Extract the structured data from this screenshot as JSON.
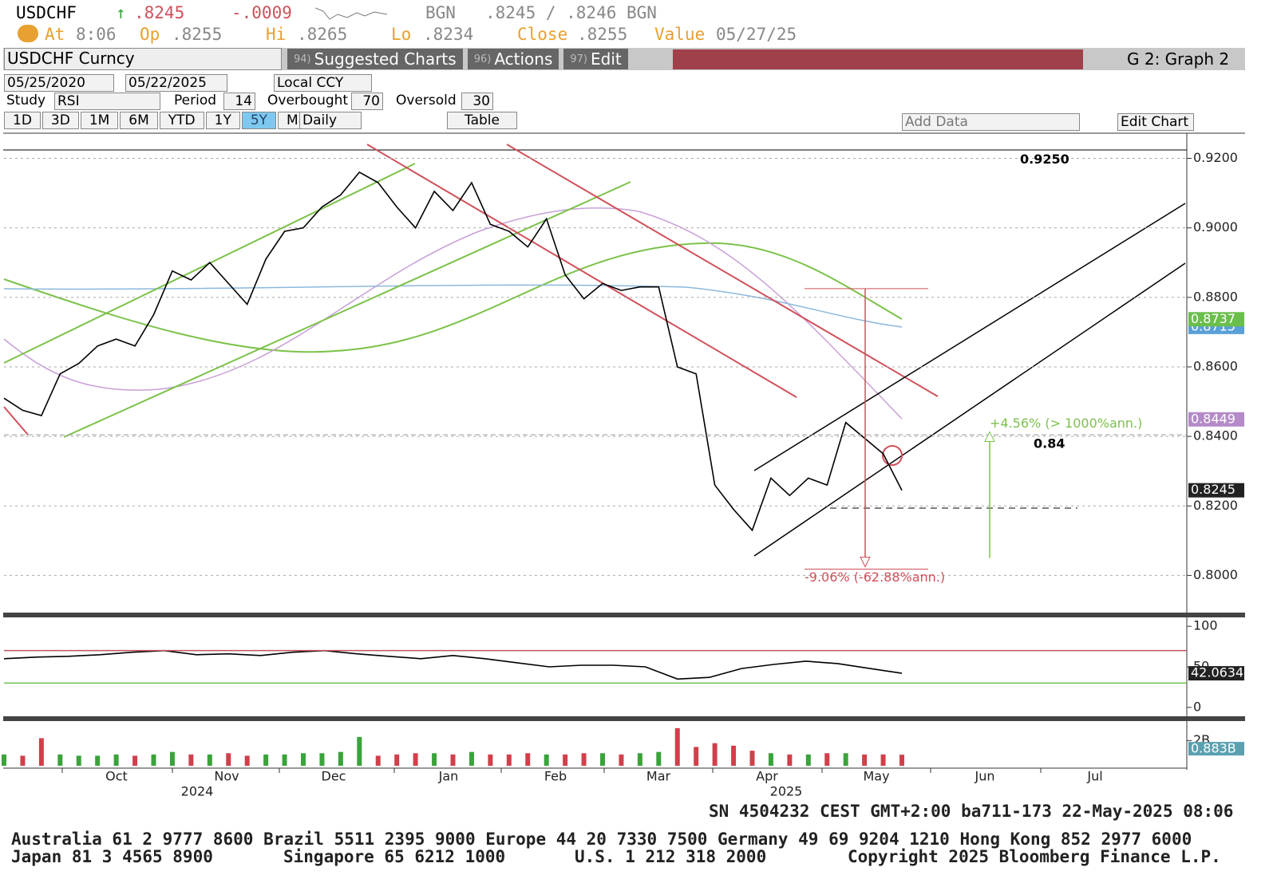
{
  "header": {
    "ticker": "USDCHF",
    "last": ".8245",
    "change": "-.0009",
    "source1": "BGN",
    "bid_ask": ".8245 / .8246",
    "source2": "BGN",
    "at_label": "At",
    "at": "8:06",
    "op_label": "Op",
    "op": ".8255",
    "hi_label": "Hi",
    "hi": ".8265",
    "lo_label": "Lo",
    "lo": ".8234",
    "close_label": "Close",
    "close": ".8255",
    "value_label": "Value",
    "value": "05/27/25"
  },
  "toolbar": {
    "security": "USDCHF Curncy",
    "menu": [
      {
        "num": "94)",
        "label": "Suggested Charts"
      },
      {
        "num": "96)",
        "label": "Actions"
      },
      {
        "num": "97)",
        "label": "Edit"
      }
    ],
    "graph": "G 2: Graph 2"
  },
  "controls": {
    "start": "05/25/2020",
    "end": "05/22/2025",
    "currency": "Local CCY",
    "study_label": "Study",
    "study": "RSI",
    "period_label": "Period",
    "period": 14,
    "overbought_label": "Overbought",
    "overbought": 70,
    "oversold_label": "Oversold",
    "oversold": 30,
    "ranges": [
      "1D",
      "3D",
      "1M",
      "6M",
      "YTD",
      "1Y",
      "5Y",
      "Max"
    ],
    "frequency": "Daily",
    "table": "Table",
    "add_data": "Add Data",
    "edit_chart": "Edit Chart"
  },
  "chart_data": [
    {
      "type": "line",
      "name": "price",
      "color": "#000000",
      "values": [
        0.851,
        0.8475,
        0.846,
        0.858,
        0.861,
        0.866,
        0.868,
        0.866,
        0.875,
        0.8876,
        0.885,
        0.89,
        0.884,
        0.878,
        0.891,
        0.899,
        0.9,
        0.906,
        0.9095,
        0.916,
        0.913,
        0.906,
        0.9,
        0.9105,
        0.905,
        0.913,
        0.901,
        0.899,
        0.8945,
        0.9026,
        0.8865,
        0.8796,
        0.884,
        0.882,
        0.883,
        0.883,
        0.86,
        0.858,
        0.826,
        0.819,
        0.813,
        0.828,
        0.823,
        0.828,
        0.826,
        0.844,
        0.8395,
        0.835,
        0.8245
      ],
      "ylim": [
        0.79,
        0.927
      ],
      "yticks": [
        {
          "value": 0.8,
          "label": "0.8000"
        },
        {
          "value": 0.82,
          "label": "0.8200"
        },
        {
          "value": 0.84,
          "label": "0.8400"
        },
        {
          "value": 0.86,
          "label": "0.8600"
        },
        {
          "value": 0.88,
          "label": "0.8800"
        },
        {
          "value": 0.9,
          "label": "0.9000"
        },
        {
          "value": 0.92,
          "label": "0.9200"
        }
      ],
      "grid": true,
      "last_labels": [
        {
          "value": 0.8715,
          "label": "0.8715",
          "color": "#5aa0d8"
        },
        {
          "value": 0.8737,
          "label": "0.8737",
          "color": "#6abf4b"
        },
        {
          "value": 0.8449,
          "label": "0.8449",
          "color": "#b48ac8"
        },
        {
          "value": 0.8245,
          "label": "0.8245",
          "color": "#222222"
        }
      ],
      "levels": [
        {
          "value": 0.925,
          "label": "0.9250"
        },
        {
          "value": 0.84,
          "label": "0.84"
        }
      ],
      "measures": [
        {
          "from": 0.8825,
          "to": 0.8025,
          "label": "-9.06% (-62.88%ann.)",
          "color": "#d0505a"
        },
        {
          "from": 0.805,
          "to": 0.8413,
          "label": "+4.56% (> 1000%ann.)",
          "color": "#7cc24a"
        }
      ],
      "months": [
        "Oct",
        "Nov",
        "Dec",
        "Jan",
        "Feb",
        "Mar",
        "Apr",
        "May",
        "Jun",
        "Jul"
      ],
      "years": [
        "2024",
        "2025"
      ]
    },
    {
      "type": "line",
      "name": "RSI",
      "color": "#000000",
      "values": [
        60,
        62,
        63,
        65,
        68,
        70,
        65,
        66,
        64,
        68,
        70,
        66,
        63,
        60,
        64,
        60,
        55,
        50,
        52,
        52,
        50,
        35,
        37,
        48,
        53,
        57,
        54,
        48,
        42.0634
      ],
      "ylim": [
        -8,
        110
      ],
      "yticks": [
        0,
        50,
        100
      ],
      "last_label": "42.0634"
    },
    {
      "type": "bar",
      "name": "volume",
      "values": [
        0.9,
        0.8,
        2.2,
        0.9,
        0.8,
        0.8,
        0.9,
        0.8,
        0.9,
        1.1,
        0.9,
        0.9,
        1.0,
        0.8,
        0.9,
        0.9,
        1.0,
        1.0,
        1.1,
        2.3,
        0.8,
        0.9,
        1.0,
        1.0,
        0.9,
        1.1,
        0.9,
        0.9,
        1.0,
        0.9,
        0.9,
        1.0,
        1.0,
        0.9,
        1.0,
        1.1,
        3.0,
        1.5,
        1.8,
        1.6,
        1.2,
        1.0,
        0.9,
        0.9,
        1.0,
        1.0,
        0.9,
        0.9,
        0.883
      ],
      "value_labels_last": "0.883B",
      "up_color": "#3aa33a",
      "down_color": "#d0404a",
      "ylim": [
        0,
        3.5
      ],
      "yticks": [
        {
          "value": 2,
          "label": "2B"
        }
      ]
    }
  ],
  "footer": {
    "session": "SN 4504232 CEST GMT+2:00 ba711-173 22-May-2025 08:06",
    "line1": "Australia 61 2 9777 8600 Brazil 5511 2395 9000 Europe 44 20 7330 7500 Germany 49 69 9204 1210 Hong Kong 852 2977 6000",
    "line2": [
      "Japan 81 3 4565 8900",
      "Singapore 65 6212 1000",
      "U.S. 1 212 318 2000",
      "Copyright 2025 Bloomberg Finance L.P."
    ]
  }
}
